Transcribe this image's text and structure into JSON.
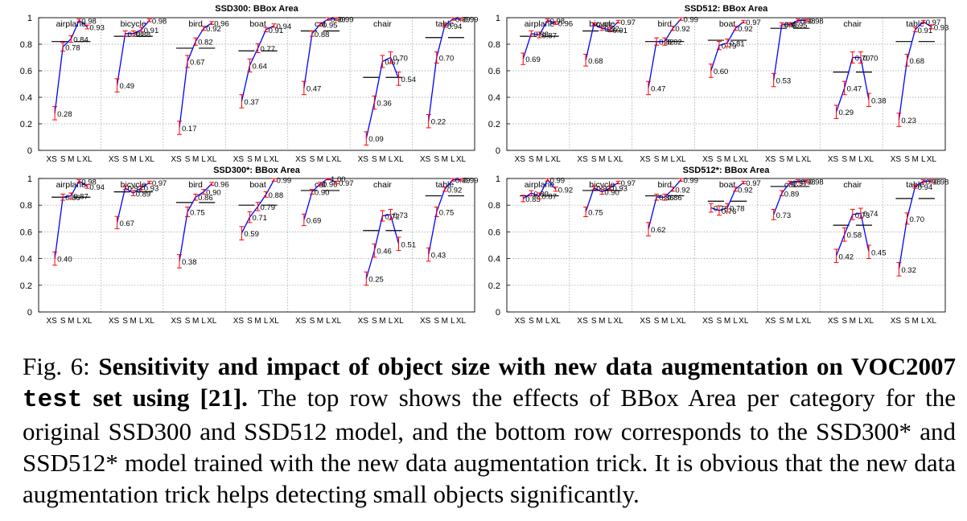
{
  "figure_label": "Fig. 6:",
  "caption_title_part1": "Sensitivity and impact of object size with new data augmentation on VOC2007 ",
  "caption_title_code": "test",
  "caption_title_part2": " set using [21].",
  "caption_body": " The top row shows the effects of BBox Area per category for the original SSD300 and SSD512 model, and the bottom row corresponds to the SSD300* and SSD512* model trained with the new data augmentation trick. It is obvious that the new data augmentation trick helps detecting small objects significantly.",
  "colors": {
    "line": "#0000ff",
    "error": "#ff0000",
    "mean": "#000000",
    "grid": "#9a9a9a",
    "frame": "#000000"
  },
  "chart_data": [
    {
      "type": "line",
      "title": "SSD300: BBox Area",
      "size_bins": [
        "XS",
        "S",
        "M",
        "L",
        "XL"
      ],
      "yticks": [
        "0",
        "0.2",
        "0.4",
        "0.6",
        "0.8",
        "1"
      ],
      "ylim": [
        0,
        1
      ],
      "categories": [
        {
          "name": "airplane",
          "values": [
            0.28,
            0.78,
            0.84,
            0.98,
            0.93
          ],
          "labels": [
            "0.28",
            "0.78",
            "0.84",
            "0.98",
            "0.93"
          ],
          "mean": 0.82
        },
        {
          "name": "bicycle",
          "values": [
            0.49,
            0.88,
            0.88,
            0.91,
            0.98
          ],
          "labels": [
            "0.49",
            "0.88",
            "0.88",
            "0.91",
            "0.98"
          ],
          "mean": 0.86
        },
        {
          "name": "bird",
          "values": [
            0.17,
            0.67,
            0.82,
            0.92,
            0.96
          ],
          "labels": [
            "0.17",
            "0.67",
            "0.82",
            "0.92",
            "0.96"
          ],
          "mean": 0.77
        },
        {
          "name": "boat",
          "values": [
            0.37,
            0.64,
            0.77,
            0.91,
            0.94
          ],
          "labels": [
            "0.37",
            "0.64",
            "0.77",
            "0.91",
            "0.94"
          ],
          "mean": 0.75
        },
        {
          "name": "cat",
          "values": [
            0.47,
            0.88,
            0.95,
            0.99,
            0.99
          ],
          "labels": [
            "0.47",
            "0.88",
            "0.95",
            "0.99",
            "0.99"
          ],
          "mean": 0.9
        },
        {
          "name": "chair",
          "values": [
            0.09,
            0.36,
            0.67,
            0.7,
            0.54
          ],
          "labels": [
            "0.09",
            "0.36",
            "0.67",
            "0.70",
            "0.54"
          ],
          "mean": 0.55
        },
        {
          "name": "table",
          "values": [
            0.22,
            0.7,
            0.94,
            0.99,
            0.99
          ],
          "labels": [
            "0.22",
            "0.70",
            "0.94",
            "0.99",
            "0.99"
          ],
          "mean": 0.85
        }
      ]
    },
    {
      "type": "line",
      "title": "SSD512: BBox Area",
      "size_bins": [
        "XS",
        "S",
        "M",
        "L",
        "XL"
      ],
      "yticks": [
        "0",
        "0.2",
        "0.4",
        "0.6",
        "0.8",
        "1"
      ],
      "ylim": [
        0,
        1
      ],
      "categories": [
        {
          "name": "airplane",
          "values": [
            0.69,
            0.88,
            0.87,
            0.98,
            0.96
          ],
          "labels": [
            "0.69",
            "0.88",
            "0.87",
            "0.98",
            "0.96"
          ],
          "mean": 0.86
        },
        {
          "name": "bicycle",
          "values": [
            0.68,
            0.95,
            0.92,
            0.91,
            0.97
          ],
          "labels": [
            "0.68",
            "0.95",
            "0.92",
            "0.91",
            "0.97"
          ],
          "mean": 0.9
        },
        {
          "name": "bird",
          "values": [
            0.47,
            0.82,
            0.82,
            0.92,
            0.99
          ],
          "labels": [
            "0.47",
            "0.82",
            "0.82",
            "0.92",
            "0.99"
          ],
          "mean": 0.82
        },
        {
          "name": "boat",
          "values": [
            0.6,
            0.79,
            0.81,
            0.92,
            0.97
          ],
          "labels": [
            "0.60",
            "0.79",
            "0.81",
            "0.92",
            "0.97"
          ],
          "mean": 0.83
        },
        {
          "name": "cat",
          "values": [
            0.53,
            0.95,
            0.95,
            0.98,
            0.98
          ],
          "labels": [
            "0.53",
            "0.95",
            "0.95",
            "0.98",
            "0.98"
          ],
          "mean": 0.92
        },
        {
          "name": "chair",
          "values": [
            0.29,
            0.47,
            0.7,
            0.7,
            0.38
          ],
          "labels": [
            "0.29",
            "0.47",
            "0.70",
            "0.70",
            "0.38"
          ],
          "mean": 0.59
        },
        {
          "name": "table",
          "values": [
            0.23,
            0.68,
            0.91,
            0.97,
            0.93
          ],
          "labels": [
            "0.23",
            "0.68",
            "0.91",
            "0.97",
            "0.93"
          ],
          "mean": 0.82
        }
      ]
    },
    {
      "type": "line",
      "title": "SSD300*: BBox Area",
      "size_bins": [
        "XS",
        "S",
        "M",
        "L",
        "XL"
      ],
      "yticks": [
        "0",
        "0.2",
        "0.4",
        "0.6",
        "0.8",
        "1"
      ],
      "ylim": [
        0,
        1
      ],
      "categories": [
        {
          "name": "airplane",
          "values": [
            0.4,
            0.86,
            0.87,
            0.98,
            0.94
          ],
          "labels": [
            "0.40",
            "0.86",
            "0.87",
            "0.98",
            "0.94"
          ],
          "mean": 0.86
        },
        {
          "name": "bicycle",
          "values": [
            0.67,
            0.93,
            0.89,
            0.93,
            0.97
          ],
          "labels": [
            "0.67",
            "0.93",
            "0.89",
            "0.93",
            "0.97"
          ],
          "mean": 0.9
        },
        {
          "name": "bird",
          "values": [
            0.38,
            0.75,
            0.86,
            0.9,
            0.96
          ],
          "labels": [
            "0.38",
            "0.75",
            "0.86",
            "0.90",
            "0.96"
          ],
          "mean": 0.82
        },
        {
          "name": "boat",
          "values": [
            0.59,
            0.71,
            0.79,
            0.88,
            0.99
          ],
          "labels": [
            "0.59",
            "0.71",
            "0.79",
            "0.88",
            "0.99"
          ],
          "mean": 0.8
        },
        {
          "name": "cat",
          "values": [
            0.69,
            0.9,
            0.96,
            1.0,
            0.97
          ],
          "labels": [
            "0.69",
            "0.90",
            "0.96",
            "1.00",
            "0.97"
          ],
          "mean": 0.91
        },
        {
          "name": "chair",
          "values": [
            0.25,
            0.46,
            0.72,
            0.73,
            0.51
          ],
          "labels": [
            "0.25",
            "0.46",
            "0.72",
            "0.73",
            "0.51"
          ],
          "mean": 0.61
        },
        {
          "name": "table",
          "values": [
            0.43,
            0.75,
            0.92,
            0.99,
            0.99
          ],
          "labels": [
            "0.43",
            "0.75",
            "0.92",
            "0.99",
            "0.99"
          ],
          "mean": 0.87
        }
      ]
    },
    {
      "type": "line",
      "title": "SSD512*: BBox Area",
      "size_bins": [
        "XS",
        "S",
        "M",
        "L",
        "XL"
      ],
      "yticks": [
        "0",
        "0.2",
        "0.4",
        "0.6",
        "0.8",
        "1"
      ],
      "ylim": [
        0,
        1
      ],
      "categories": [
        {
          "name": "airplane",
          "values": [
            0.85,
            0.89,
            0.87,
            0.99,
            0.92
          ],
          "labels": [
            "0.85",
            "0.89",
            "0.87",
            "0.99",
            "0.92"
          ],
          "mean": 0.87
        },
        {
          "name": "bicycle",
          "values": [
            0.75,
            0.93,
            0.9,
            0.93,
            0.97
          ],
          "labels": [
            "0.75",
            "0.93",
            "0.90",
            "0.93",
            "0.97"
          ],
          "mean": 0.91
        },
        {
          "name": "bird",
          "values": [
            0.62,
            0.86,
            0.86,
            0.92,
            0.99
          ],
          "labels": [
            "0.62",
            "0.86",
            "0.86",
            "0.92",
            "0.99"
          ],
          "mean": 0.87
        },
        {
          "name": "boat",
          "values": [
            0.78,
            0.76,
            0.78,
            0.92,
            0.97
          ],
          "labels": [
            "0.78",
            "0.76",
            "0.78",
            "0.92",
            "0.97"
          ],
          "mean": 0.83
        },
        {
          "name": "cat",
          "values": [
            0.73,
            0.89,
            0.97,
            0.98,
            0.98
          ],
          "labels": [
            "0.73",
            "0.89",
            "0.97",
            "0.98",
            "0.98"
          ],
          "mean": 0.94
        },
        {
          "name": "chair",
          "values": [
            0.42,
            0.58,
            0.73,
            0.74,
            0.45
          ],
          "labels": [
            "0.42",
            "0.58",
            "0.73",
            "0.74",
            "0.45"
          ],
          "mean": 0.65
        },
        {
          "name": "table",
          "values": [
            0.32,
            0.7,
            0.94,
            0.98,
            0.98
          ],
          "labels": [
            "0.32",
            "0.70",
            "0.94",
            "0.98",
            "0.98"
          ],
          "mean": 0.85
        }
      ]
    }
  ]
}
